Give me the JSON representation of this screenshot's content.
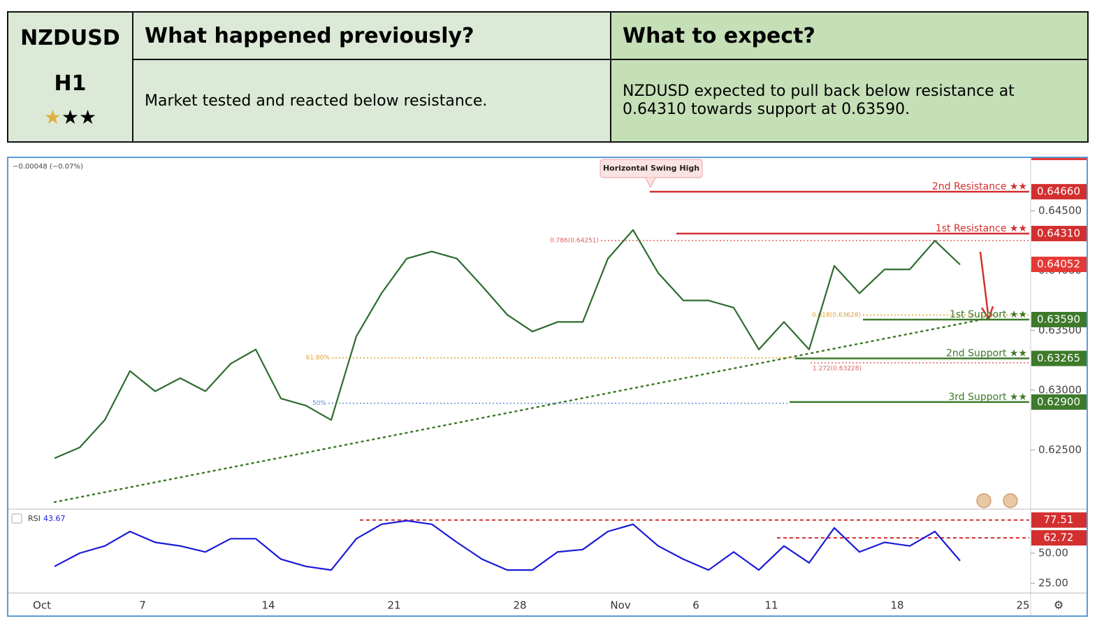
{
  "header": {
    "symbol": "NZDUSD",
    "timeframe": "H1",
    "previous_title": "What happened previously?",
    "previous_text": "Market tested and reacted below resistance.",
    "expect_title": "What to expect?",
    "expect_text": "NZDUSD expected to pull back below resistance at 0.64310 towards support at 0.63590."
  },
  "chart_data": [
    {
      "type": "line",
      "subtitle": "−0.00048 (−0.07%)",
      "annotation": "Horizontal Swing High",
      "categories": [
        "Oct",
        null,
        null,
        null,
        "7",
        null,
        null,
        null,
        null,
        "14",
        null,
        null,
        null,
        null,
        "21",
        null,
        null,
        null,
        null,
        "28",
        null,
        null,
        null,
        "Nov",
        null,
        null,
        "6",
        null,
        null,
        "11",
        null,
        null,
        null,
        null,
        "18",
        null,
        null,
        null,
        null,
        "25"
      ],
      "values": [
        0.6243,
        0.6252,
        0.6275,
        0.6316,
        0.6299,
        0.631,
        0.6299,
        0.6322,
        0.6334,
        0.6293,
        0.6287,
        0.6275,
        0.6345,
        0.6381,
        0.641,
        0.6416,
        0.641,
        0.6387,
        0.6363,
        0.6349,
        0.6357,
        0.6357,
        0.641,
        0.6434,
        0.6398,
        0.6375,
        0.6375,
        0.6369,
        0.6334,
        0.6357,
        0.6334,
        0.6404,
        0.6381,
        0.6401,
        0.6401,
        0.6425,
        0.6405,
        null,
        null,
        null
      ],
      "color": "#2e6b2e",
      "ylim": [
        0.6201,
        0.6493
      ],
      "yticks": [
        {
          "value": 0.625,
          "label": "0.62500"
        },
        {
          "value": 0.63,
          "label": "0.63000"
        },
        {
          "value": 0.635,
          "label": "0.63500"
        },
        {
          "value": 0.64,
          "label": "0.64000"
        },
        {
          "value": 0.645,
          "label": "0.64500"
        }
      ],
      "last_price": 0.64052,
      "last_price_color": "#e53935",
      "levels": [
        {
          "name": "2nd Resistance ★★",
          "value": 0.6466,
          "value_label": "0.64660",
          "color": "#d32f2f"
        },
        {
          "name": "1st Resistance ★★",
          "value": 0.6431,
          "value_label": "0.64310",
          "color": "#d32f2f"
        },
        {
          "name": "1st Support ★★",
          "value": 0.6359,
          "value_label": "0.63590",
          "color": "#3d7a2a"
        },
        {
          "name": "2nd Support ★★",
          "value": 0.63265,
          "color": "#3d7a2a"
        },
        {
          "name": "3rd Support ★★",
          "value": 0.629,
          "value_label": "0.62900",
          "color": "#3d7a2a"
        }
      ],
      "fib_levels": [
        {
          "label": "61.80%",
          "value": 0.6327,
          "color": "#e0a030"
        },
        {
          "label": "50%",
          "value": 0.6289,
          "color": "#5b8fd9"
        },
        {
          "label": "0.618(0.63628)",
          "value": 0.63628,
          "color": "#e0a030"
        },
        {
          "label": "1.272(0.63228)",
          "value": 0.63228,
          "color": "#e06060"
        },
        {
          "label": "0.786(0.64251)",
          "value": 0.64251,
          "color": "#e06060"
        }
      ]
    },
    {
      "type": "line",
      "title": "RSI",
      "values": [
        39,
        50,
        56,
        68,
        59,
        56,
        51,
        62,
        62,
        45,
        39,
        36,
        62,
        74,
        77,
        74,
        59,
        45,
        36,
        36,
        51,
        53,
        68,
        74,
        56,
        45,
        36,
        51,
        36,
        56,
        42,
        71,
        51,
        59,
        56,
        68,
        43.67
      ],
      "color": "#1a1ad6",
      "ylim": [
        16.9,
        86
      ],
      "yticks": [
        {
          "value": 25,
          "label": "25.00"
        },
        {
          "value": 50,
          "label": "50.00"
        }
      ],
      "levels": [
        77.51,
        62.72
      ],
      "level_color": "#d32f2f"
    }
  ]
}
